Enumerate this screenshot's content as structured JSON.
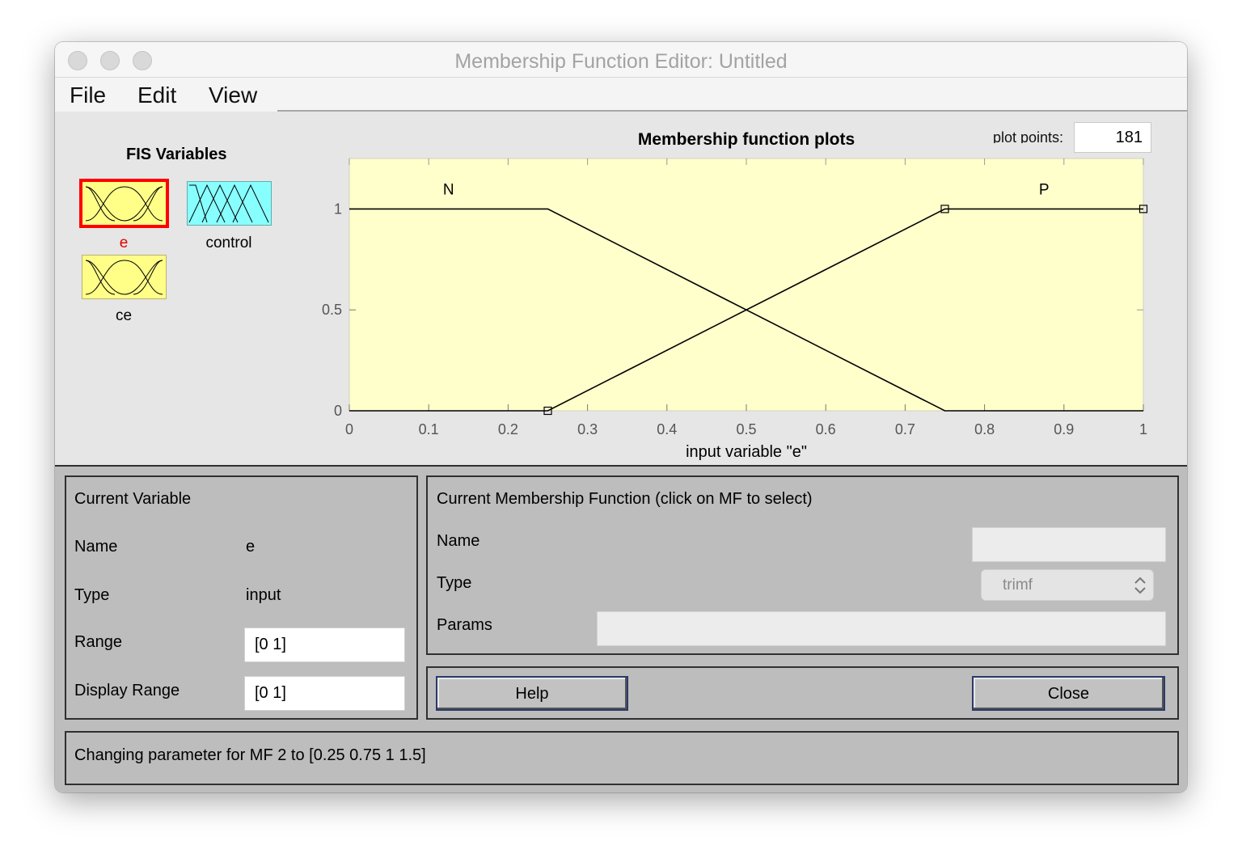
{
  "window": {
    "title": "Membership Function Editor: Untitled"
  },
  "menu": {
    "file": "File",
    "edit": "Edit",
    "view": "View"
  },
  "fis_variables": {
    "title": "FIS Variables",
    "e": "e",
    "control": "control",
    "ce": "ce",
    "selected": "e"
  },
  "plot": {
    "plot_points_label": "plot points:",
    "plot_points_value": "181"
  },
  "chart_data": {
    "type": "line",
    "title": "Membership function plots",
    "xlabel": "input variable \"e\"",
    "ylabel": "",
    "xlim": [
      0,
      1
    ],
    "ylim": [
      0,
      1
    ],
    "xticks": [
      "0",
      "0.1",
      "0.2",
      "0.3",
      "0.4",
      "0.5",
      "0.6",
      "0.7",
      "0.8",
      "0.9",
      "1"
    ],
    "yticks": [
      "0",
      "0.5",
      "1"
    ],
    "series": [
      {
        "name": "N",
        "x": [
          0,
          0.25,
          0.75,
          1
        ],
        "y": [
          1,
          1,
          0,
          0
        ]
      },
      {
        "name": "P",
        "x": [
          0,
          0.25,
          0.75,
          1
        ],
        "y": [
          0,
          0,
          1,
          1
        ]
      }
    ],
    "selected_markers": [
      {
        "x": 0.25,
        "y": 0
      },
      {
        "x": 0.75,
        "y": 1
      },
      {
        "x": 1,
        "y": 1
      }
    ],
    "background": "#ffffcc"
  },
  "current_variable": {
    "title": "Current Variable",
    "name_label": "Name",
    "name_value": "e",
    "type_label": "Type",
    "type_value": "input",
    "range_label": "Range",
    "range_value": "[0 1]",
    "display_range_label": "Display Range",
    "display_range_value": "[0 1]"
  },
  "current_mf": {
    "title": "Current Membership Function (click on MF to select)",
    "name_label": "Name",
    "type_label": "Type",
    "type_value": "trimf",
    "params_label": "Params"
  },
  "buttons": {
    "help": "Help",
    "close": "Close"
  },
  "status": {
    "message": "Changing parameter for MF 2 to  [0.25 0.75 1 1.5]"
  },
  "colors": {
    "selected_border": "#ff0000",
    "selected_label": "#e00000",
    "input_icon_fill": "#ffff88",
    "output_icon_fill": "#88ffff",
    "plot_background": "#ffffcc",
    "panel_background": "#bdbdbd"
  }
}
